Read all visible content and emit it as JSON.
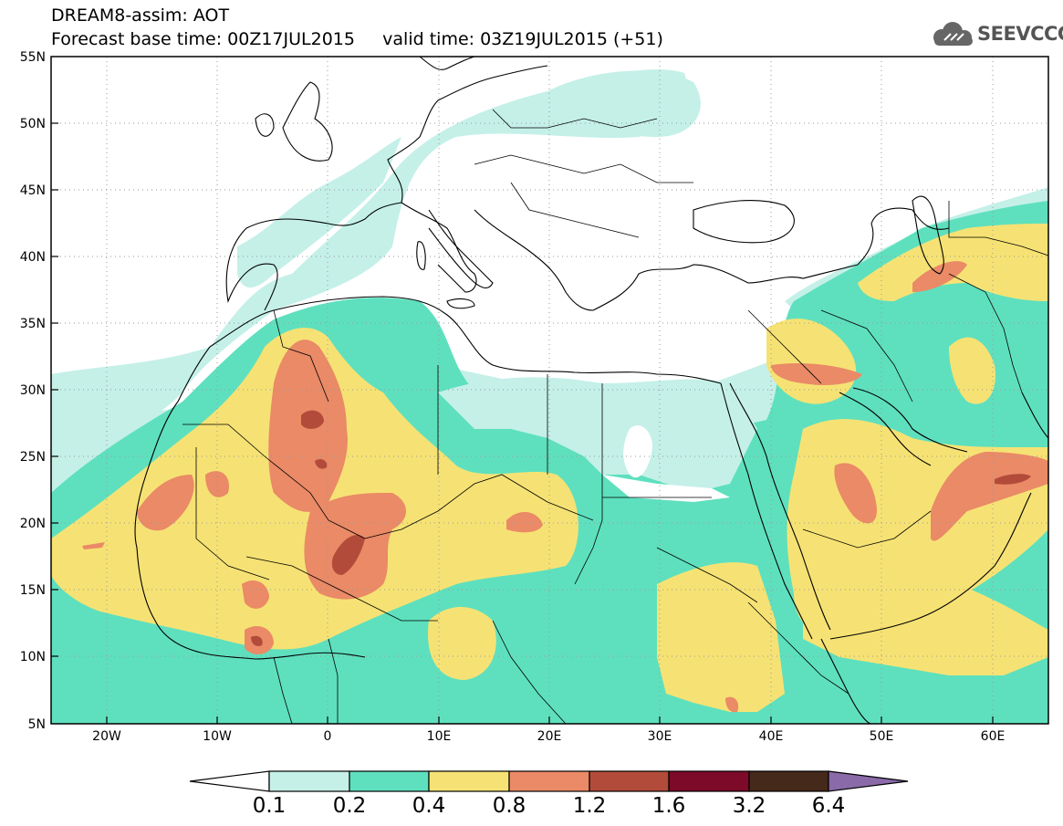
{
  "header": {
    "title": "DREAM8-assim: AOT",
    "forecast_base": "Forecast base time: 00Z17JUL2015",
    "valid_time": "valid time: 03Z19JUL2015 (+51)"
  },
  "logo": {
    "text": "SEEVCCC",
    "icon": "cloud-icon"
  },
  "map": {
    "lon_range": [
      -25,
      65
    ],
    "lat_range": [
      5,
      55
    ],
    "lon_ticks": [
      "20W",
      "10W",
      "0",
      "10E",
      "20E",
      "30E",
      "40E",
      "50E",
      "60E"
    ],
    "lat_ticks": [
      "55N",
      "50N",
      "45N",
      "40N",
      "35N",
      "30N",
      "25N",
      "20N",
      "15N",
      "10N",
      "5N"
    ],
    "grid": "dotted",
    "variable": "Aerosol Optical Thickness"
  },
  "legend": {
    "colors": [
      "#ffffff",
      "#c4f0e8",
      "#5ee0be",
      "#f6e274",
      "#ea8a66",
      "#b24b3a",
      "#7c0a28",
      "#45291a",
      "#8a6aa8"
    ],
    "labels": [
      "0.1",
      "0.2",
      "0.4",
      "0.8",
      "1.2",
      "1.6",
      "3.2",
      "6.4"
    ]
  }
}
